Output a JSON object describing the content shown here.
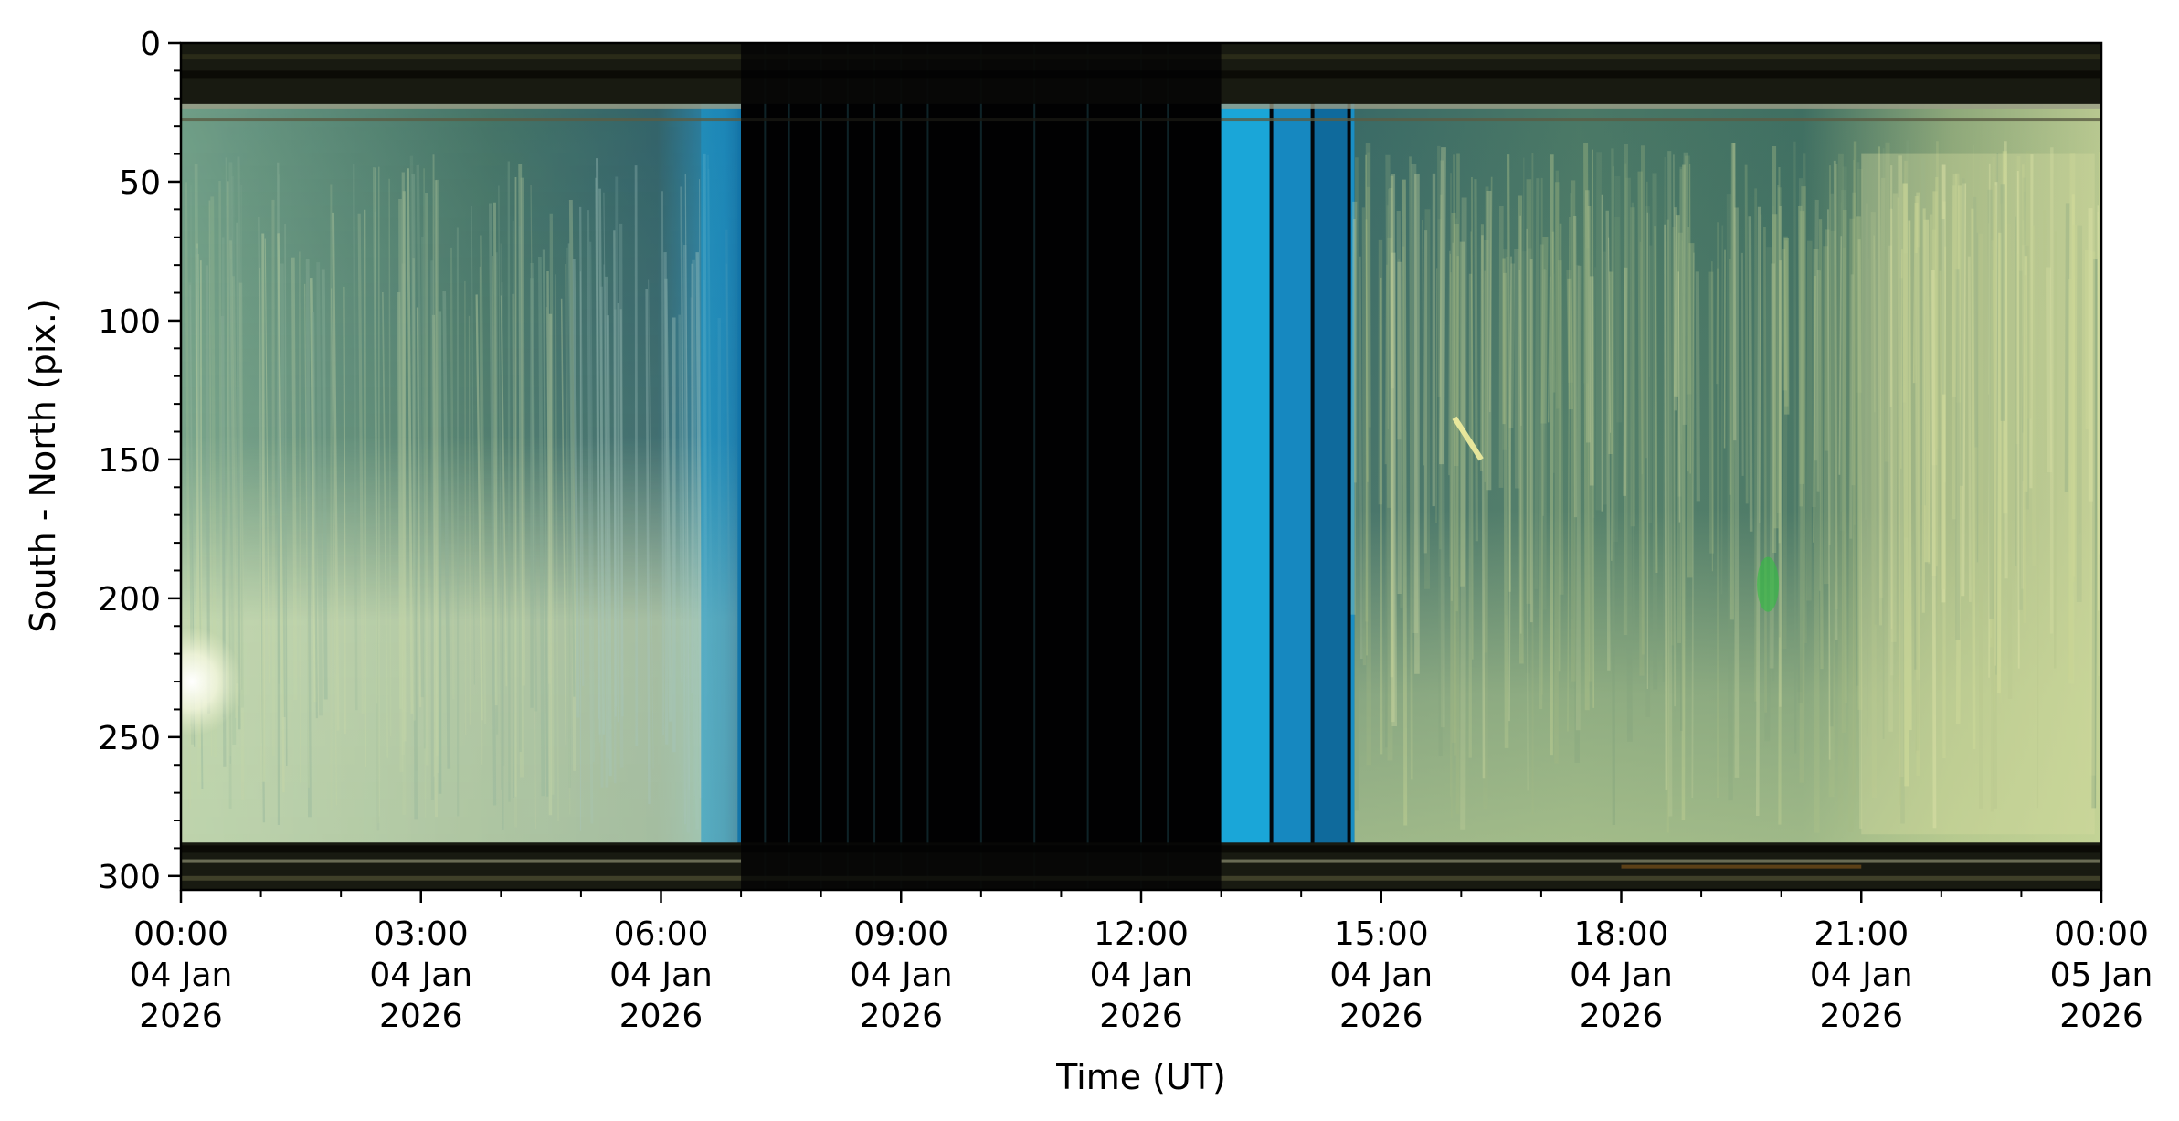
{
  "chart_data": {
    "type": "heatmap",
    "title": "",
    "xlabel": "Time (UT)",
    "ylabel": "South - North (pix.)",
    "xlim": [
      "2026-01-04T00:00",
      "2026-01-05T00:00"
    ],
    "ylim": [
      305,
      0
    ],
    "y_inverted": true,
    "grid": false,
    "legend": "none",
    "x_ticks": [
      {
        "time": "2026-01-04T00:00",
        "label": [
          "00:00",
          "04 Jan",
          "2026"
        ]
      },
      {
        "time": "2026-01-04T03:00",
        "label": [
          "03:00",
          "04 Jan",
          "2026"
        ]
      },
      {
        "time": "2026-01-04T06:00",
        "label": [
          "06:00",
          "04 Jan",
          "2026"
        ]
      },
      {
        "time": "2026-01-04T09:00",
        "label": [
          "09:00",
          "04 Jan",
          "2026"
        ]
      },
      {
        "time": "2026-01-04T12:00",
        "label": [
          "12:00",
          "04 Jan",
          "2026"
        ]
      },
      {
        "time": "2026-01-04T15:00",
        "label": [
          "15:00",
          "04 Jan",
          "2026"
        ]
      },
      {
        "time": "2026-01-04T18:00",
        "label": [
          "18:00",
          "04 Jan",
          "2026"
        ]
      },
      {
        "time": "2026-01-04T21:00",
        "label": [
          "21:00",
          "04 Jan",
          "2026"
        ]
      },
      {
        "time": "2026-01-05T00:00",
        "label": [
          "00:00",
          "05 Jan",
          "2026"
        ]
      }
    ],
    "y_ticks": [
      {
        "value": 0,
        "label": "0"
      },
      {
        "value": 50,
        "label": "50"
      },
      {
        "value": 100,
        "label": "100"
      },
      {
        "value": 150,
        "label": "150"
      },
      {
        "value": 200,
        "label": "200"
      },
      {
        "value": 250,
        "label": "250"
      },
      {
        "value": 300,
        "label": "300"
      }
    ],
    "features": {
      "dark_gap": {
        "start": "2026-01-04T07:00",
        "end": "2026-01-04T13:00"
      },
      "dark_gap_bright_lines": [
        "07:18",
        "07:36",
        "08:00",
        "08:20",
        "08:40",
        "09:00",
        "09:20",
        "10:00",
        "10:40",
        "11:20",
        "12:00",
        "12:20"
      ],
      "blue_twilight_segments": [
        {
          "start": "2026-01-04T06:30",
          "end": "2026-01-04T07:00"
        },
        {
          "start": "2026-01-04T13:00",
          "end": "2026-01-04T14:40"
        }
      ],
      "dark_rows": [
        {
          "from": 0,
          "to": 22
        },
        {
          "from": 288,
          "to": 305
        }
      ],
      "colors": {
        "aurora_green": "#c8d89c",
        "teal": "#4f7f70",
        "twilight_blue": "#1e96c8",
        "dark": "#040404",
        "bright_green": "#30c040"
      }
    }
  }
}
